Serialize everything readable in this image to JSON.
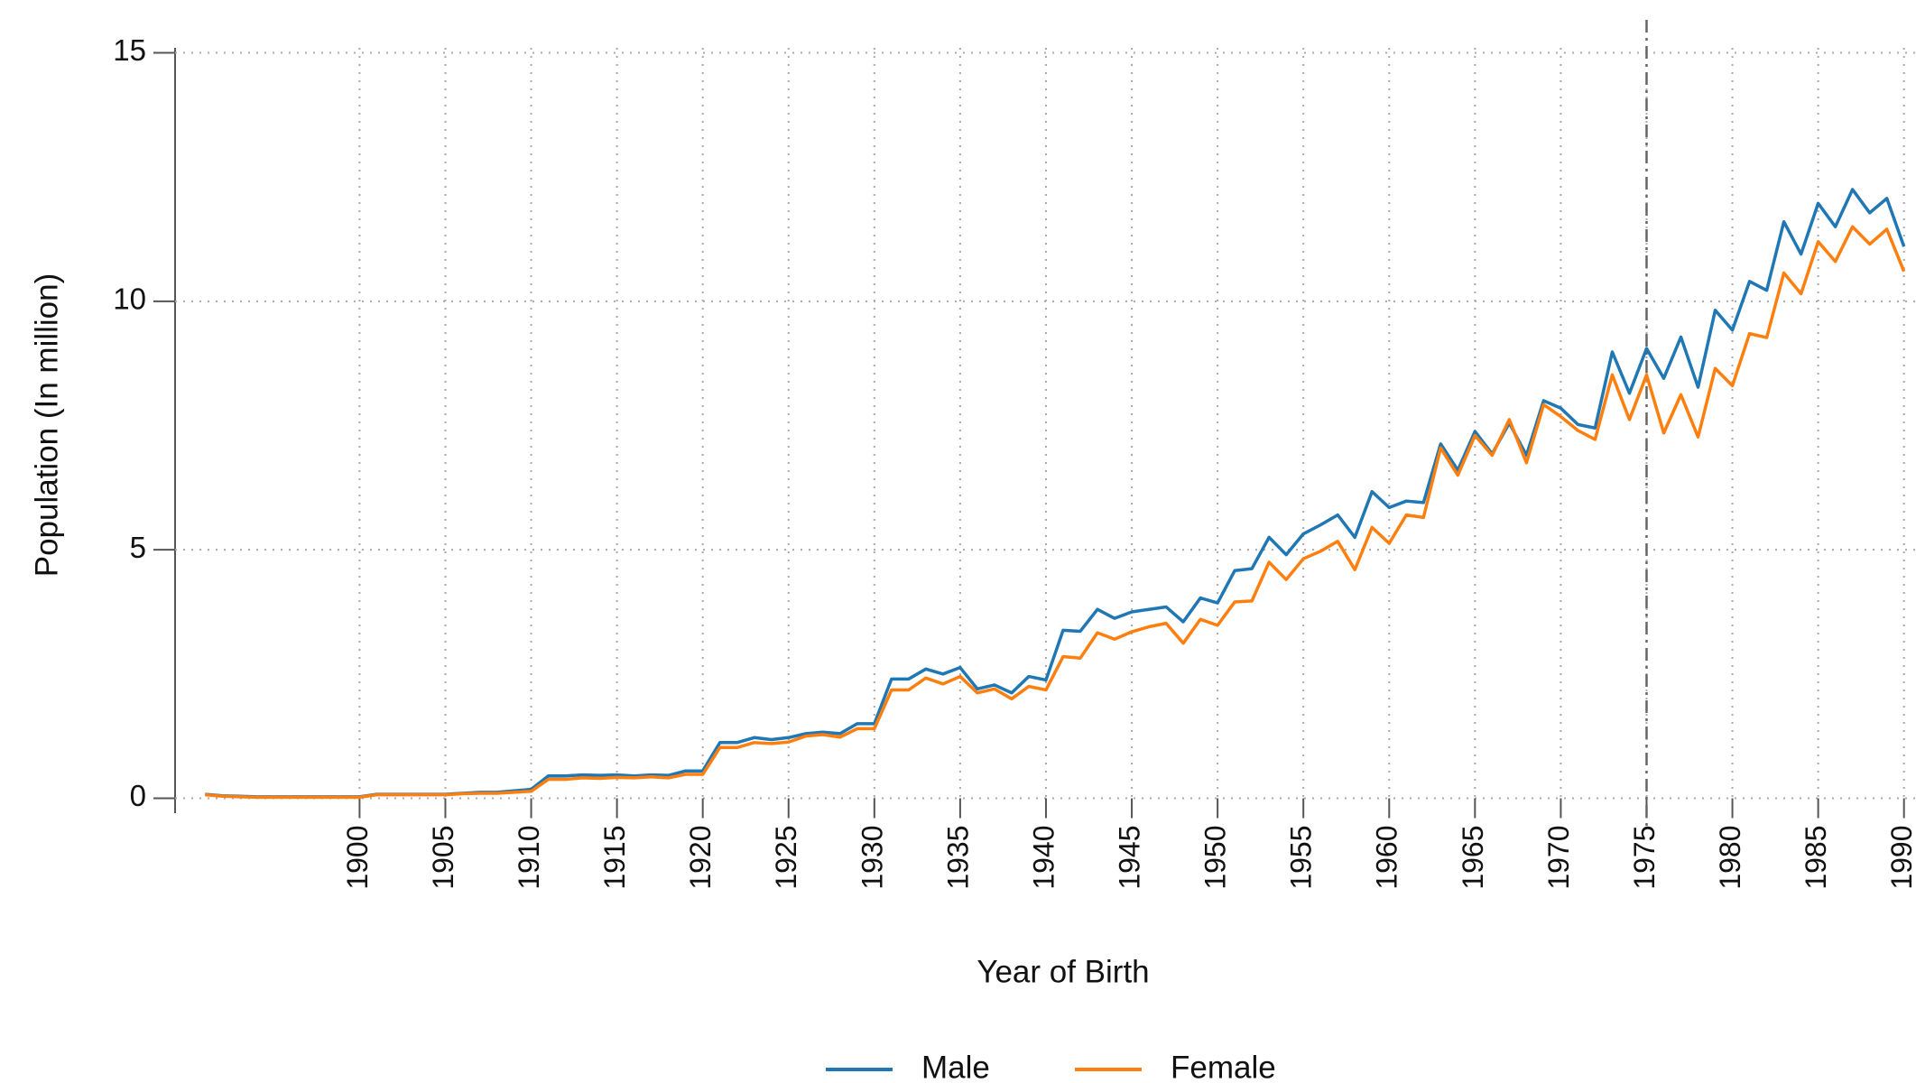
{
  "chart_data": {
    "type": "line",
    "xlabel": "Year of Birth",
    "ylabel": "Population (In million)",
    "x": [
      1891,
      1892,
      1893,
      1894,
      1895,
      1896,
      1897,
      1898,
      1899,
      1900,
      1901,
      1902,
      1903,
      1904,
      1905,
      1906,
      1907,
      1908,
      1909,
      1910,
      1911,
      1912,
      1913,
      1914,
      1915,
      1916,
      1917,
      1918,
      1919,
      1920,
      1921,
      1922,
      1923,
      1924,
      1925,
      1926,
      1927,
      1928,
      1929,
      1930,
      1931,
      1932,
      1933,
      1934,
      1935,
      1936,
      1937,
      1938,
      1939,
      1940,
      1941,
      1942,
      1943,
      1944,
      1945,
      1946,
      1947,
      1948,
      1949,
      1950,
      1951,
      1952,
      1953,
      1954,
      1955,
      1956,
      1957,
      1958,
      1959,
      1960,
      1961,
      1962,
      1963,
      1964,
      1965,
      1966,
      1967,
      1968,
      1969,
      1970,
      1971,
      1972,
      1973,
      1974,
      1975,
      1976,
      1977,
      1978,
      1979,
      1980,
      1981,
      1982,
      1983,
      1984,
      1985,
      1986,
      1987,
      1988,
      1989,
      1990
    ],
    "series": [
      {
        "name": "Male",
        "color": "#1f77b4",
        "values": [
          0.08,
          0.05,
          0.04,
          0.03,
          0.03,
          0.03,
          0.03,
          0.03,
          0.03,
          0.03,
          0.08,
          0.08,
          0.08,
          0.08,
          0.08,
          0.1,
          0.12,
          0.12,
          0.15,
          0.18,
          0.45,
          0.45,
          0.47,
          0.46,
          0.47,
          0.45,
          0.47,
          0.46,
          0.55,
          0.55,
          1.12,
          1.12,
          1.22,
          1.18,
          1.22,
          1.3,
          1.33,
          1.3,
          1.5,
          1.5,
          2.4,
          2.4,
          2.6,
          2.5,
          2.63,
          2.2,
          2.28,
          2.12,
          2.45,
          2.38,
          3.38,
          3.36,
          3.8,
          3.62,
          3.75,
          3.8,
          3.85,
          3.55,
          4.03,
          3.93,
          4.58,
          4.62,
          5.25,
          4.9,
          5.32,
          5.5,
          5.7,
          5.25,
          6.17,
          5.85,
          5.98,
          5.95,
          7.13,
          6.6,
          7.38,
          6.93,
          7.55,
          6.9,
          8.0,
          7.85,
          7.52,
          7.45,
          8.98,
          8.15,
          9.05,
          8.45,
          9.28,
          8.27,
          9.82,
          9.42,
          10.4,
          10.22,
          11.6,
          10.95,
          11.97,
          11.5,
          12.25,
          11.78,
          12.07,
          11.1
        ]
      },
      {
        "name": "Female",
        "color": "#ff7f0e",
        "values": [
          0.07,
          0.04,
          0.03,
          0.02,
          0.02,
          0.02,
          0.02,
          0.02,
          0.02,
          0.02,
          0.07,
          0.07,
          0.07,
          0.07,
          0.07,
          0.09,
          0.1,
          0.1,
          0.12,
          0.14,
          0.38,
          0.38,
          0.41,
          0.4,
          0.42,
          0.41,
          0.43,
          0.41,
          0.48,
          0.48,
          1.02,
          1.02,
          1.12,
          1.1,
          1.13,
          1.25,
          1.28,
          1.23,
          1.4,
          1.4,
          2.18,
          2.18,
          2.42,
          2.3,
          2.45,
          2.12,
          2.2,
          2.0,
          2.25,
          2.18,
          2.85,
          2.82,
          3.33,
          3.2,
          3.35,
          3.45,
          3.52,
          3.12,
          3.6,
          3.48,
          3.95,
          3.97,
          4.75,
          4.4,
          4.82,
          4.97,
          5.17,
          4.6,
          5.45,
          5.13,
          5.7,
          5.65,
          7.05,
          6.5,
          7.3,
          6.9,
          7.62,
          6.75,
          7.92,
          7.68,
          7.4,
          7.22,
          8.52,
          7.62,
          8.52,
          7.35,
          8.12,
          7.27,
          8.65,
          8.3,
          9.35,
          9.27,
          10.57,
          10.15,
          11.2,
          10.8,
          11.5,
          11.15,
          11.45,
          10.6
        ]
      }
    ],
    "xlim": [
      1889.25,
      1990.7
    ],
    "ylim": [
      -0.3,
      15.1
    ],
    "xticks": [
      1900,
      1905,
      1910,
      1915,
      1920,
      1925,
      1930,
      1935,
      1940,
      1945,
      1950,
      1955,
      1960,
      1965,
      1970,
      1975,
      1980,
      1985,
      1990
    ],
    "yticks": [
      0,
      5,
      10,
      15
    ],
    "grid": true,
    "vline": 1975,
    "legend": "bottom"
  }
}
